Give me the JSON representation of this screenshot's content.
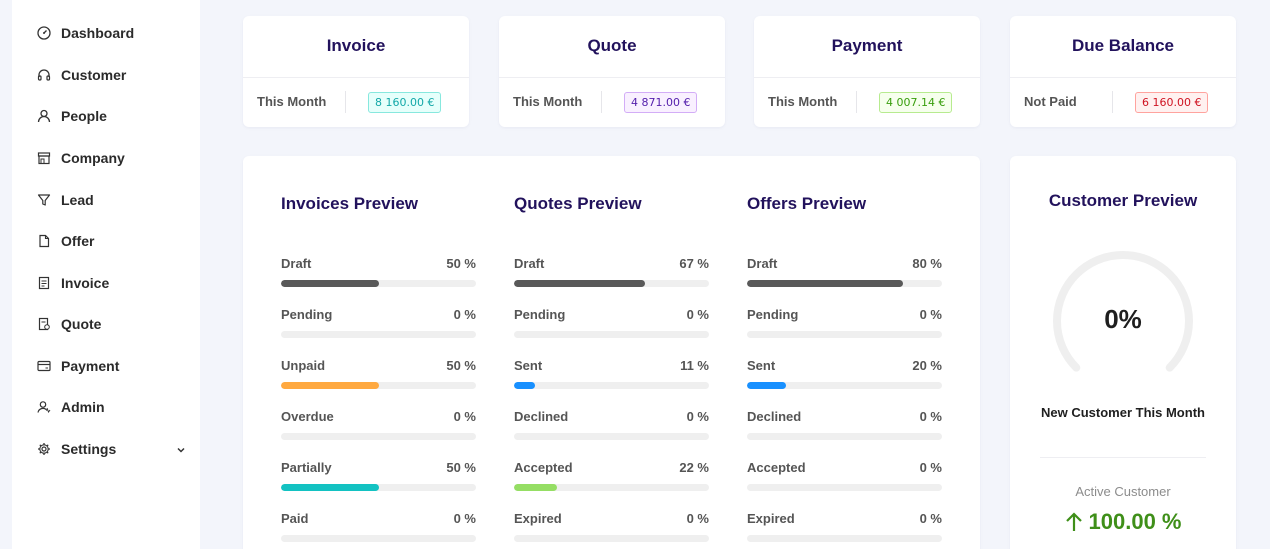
{
  "sidebar": {
    "items": [
      {
        "label": "Dashboard",
        "icon": "dashboard-icon"
      },
      {
        "label": "Customer",
        "icon": "headset-icon"
      },
      {
        "label": "People",
        "icon": "user-icon"
      },
      {
        "label": "Company",
        "icon": "shop-icon"
      },
      {
        "label": "Lead",
        "icon": "filter-icon"
      },
      {
        "label": "Offer",
        "icon": "file-icon"
      },
      {
        "label": "Invoice",
        "icon": "container-icon"
      },
      {
        "label": "Quote",
        "icon": "file-sync-icon"
      },
      {
        "label": "Payment",
        "icon": "credit-card-icon"
      },
      {
        "label": "Admin",
        "icon": "team-icon"
      },
      {
        "label": "Settings",
        "icon": "gear-icon"
      }
    ]
  },
  "summary": [
    {
      "title": "Invoice",
      "label": "This Month",
      "value": "8 160.00 €",
      "color": "#13a8a8",
      "bg": "#e6fffb",
      "border": "#87e8de"
    },
    {
      "title": "Quote",
      "label": "This Month",
      "value": "4 871.00 €",
      "color": "#531dab",
      "bg": "#f9f0ff",
      "border": "#d3adf7"
    },
    {
      "title": "Payment",
      "label": "This Month",
      "value": "4 007.14 €",
      "color": "#389e0d",
      "bg": "#f6ffed",
      "border": "#b7eb8f"
    },
    {
      "title": "Due Balance",
      "label": "Not Paid",
      "value": "6 160.00 €",
      "color": "#cf1322",
      "bg": "#fff1f0",
      "border": "#ffa39e"
    }
  ],
  "previews": [
    {
      "title": "Invoices Preview",
      "rows": [
        {
          "label": "Draft",
          "pct_text": "50 %",
          "value": 50,
          "color": "#595959"
        },
        {
          "label": "Pending",
          "pct_text": "0 %",
          "value": 0,
          "color": "#1890ff"
        },
        {
          "label": "Unpaid",
          "pct_text": "50 %",
          "value": 50,
          "color": "#ffa940"
        },
        {
          "label": "Overdue",
          "pct_text": "0 %",
          "value": 0,
          "color": "#ff4d4f"
        },
        {
          "label": "Partially",
          "pct_text": "50 %",
          "value": 50,
          "color": "#13c2c2"
        },
        {
          "label": "Paid",
          "pct_text": "0 %",
          "value": 0,
          "color": "#52c41a"
        }
      ]
    },
    {
      "title": "Quotes Preview",
      "rows": [
        {
          "label": "Draft",
          "pct_text": "67 %",
          "value": 67,
          "color": "#595959"
        },
        {
          "label": "Pending",
          "pct_text": "0 %",
          "value": 0,
          "color": "#1890ff"
        },
        {
          "label": "Sent",
          "pct_text": "11 %",
          "value": 11,
          "color": "#1890ff"
        },
        {
          "label": "Declined",
          "pct_text": "0 %",
          "value": 0,
          "color": "#ff4d4f"
        },
        {
          "label": "Accepted",
          "pct_text": "22 %",
          "value": 22,
          "color": "#95de64"
        },
        {
          "label": "Expired",
          "pct_text": "0 %",
          "value": 0,
          "color": "#faad14"
        }
      ]
    },
    {
      "title": "Offers Preview",
      "rows": [
        {
          "label": "Draft",
          "pct_text": "80 %",
          "value": 80,
          "color": "#595959"
        },
        {
          "label": "Pending",
          "pct_text": "0 %",
          "value": 0,
          "color": "#1890ff"
        },
        {
          "label": "Sent",
          "pct_text": "20 %",
          "value": 20,
          "color": "#1890ff"
        },
        {
          "label": "Declined",
          "pct_text": "0 %",
          "value": 0,
          "color": "#ff4d4f"
        },
        {
          "label": "Accepted",
          "pct_text": "0 %",
          "value": 0,
          "color": "#95de64"
        },
        {
          "label": "Expired",
          "pct_text": "0 %",
          "value": 0,
          "color": "#faad14"
        }
      ]
    }
  ],
  "customer": {
    "title": "Customer Preview",
    "gauge_value": "0%",
    "gauge_fraction": 0,
    "subtitle": "New Customer This Month",
    "active_label": "Active Customer",
    "active_value": "100.00 %",
    "active_color": "#3f8f19"
  }
}
